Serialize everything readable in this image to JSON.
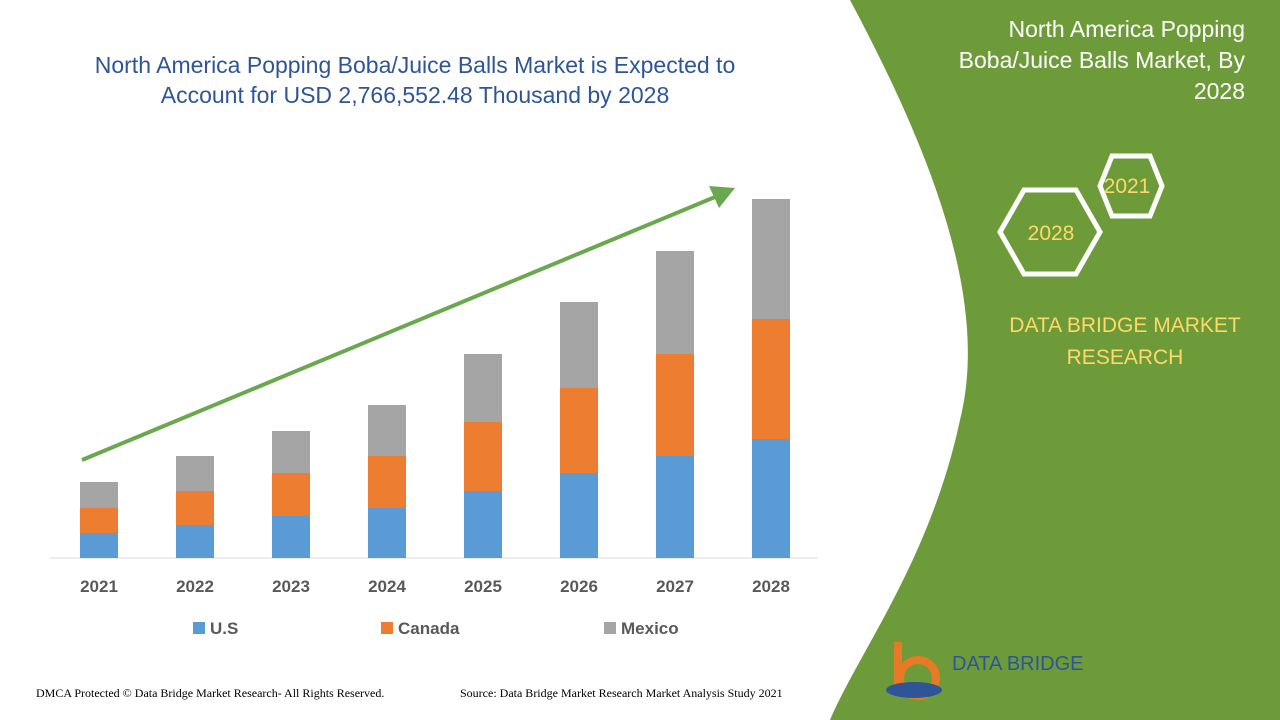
{
  "chart_data": {
    "type": "stacked_bar",
    "title": "North America Popping Boba/Juice Balls Market is Expected to Account for USD 2,766,552.48 Thousand by 2028",
    "categories": [
      "2021",
      "2022",
      "2023",
      "2024",
      "2025",
      "2026",
      "2027",
      "2028"
    ],
    "series": [
      {
        "name": "U.S",
        "color": "#5b9bd5",
        "values": [
          25,
          33,
          42,
          50,
          67,
          85,
          102,
          119
        ]
      },
      {
        "name": "Canada",
        "color": "#ed7d31",
        "values": [
          25,
          34,
          43,
          52,
          69,
          85,
          102,
          120
        ]
      },
      {
        "name": "Mexico",
        "color": "#a5a5a5",
        "values": [
          26,
          35,
          42,
          51,
          68,
          86,
          103,
          120
        ]
      }
    ],
    "ylim": [
      0,
      360
    ]
  },
  "panel": {
    "title": "North America Popping Boba/Juice Balls Market, By 2028",
    "hex_front": "2028",
    "hex_back": "2021",
    "brand": "DATA BRIDGE MARKET RESEARCH",
    "logo": "DATA BRIDGE"
  },
  "footer": {
    "left": "DMCA Protected © Data Bridge Market Research- All Rights Reserved.",
    "right": "Source: Data Bridge Market Research Market Analysis Study 2021"
  }
}
